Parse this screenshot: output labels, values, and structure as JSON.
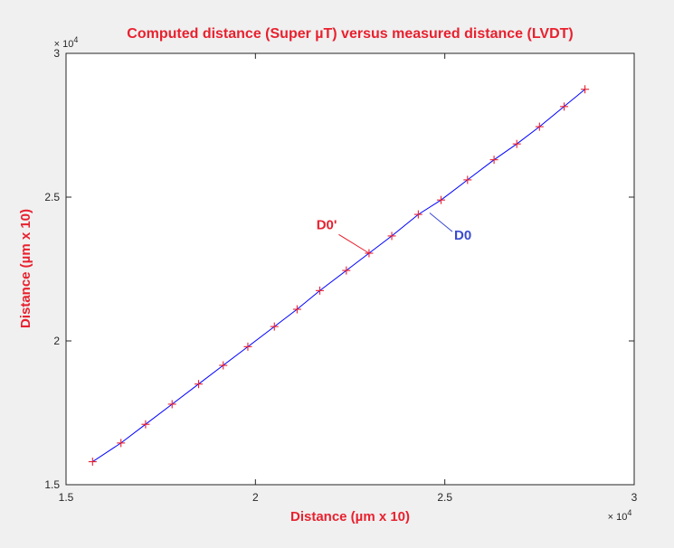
{
  "chart_data": {
    "type": "line",
    "title": "Computed distance (Super µT) versus measured distance (LVDT)",
    "xlabel": "Distance (µm x 10)",
    "ylabel": "Distance (µm x 10)",
    "xlim": [
      15000,
      30000
    ],
    "ylim": [
      15000,
      30000
    ],
    "x_ticks": [
      15000,
      20000,
      25000,
      30000
    ],
    "y_ticks": [
      15000,
      20000,
      25000,
      30000
    ],
    "x_tick_labels": [
      "1.5",
      "2",
      "2.5",
      "3"
    ],
    "y_tick_labels": [
      "1.5",
      "2",
      "2.5",
      "3"
    ],
    "x_exponent_label": "× 10",
    "x_exponent_power": "4",
    "y_exponent_label": "× 10",
    "y_exponent_power": "4",
    "grid": false,
    "series": [
      {
        "style": "line",
        "color": "#0000ff",
        "x": [
          15700,
          16450,
          17100,
          17800,
          18500,
          19150,
          19800,
          20500,
          21100,
          21700,
          22400,
          23000,
          23600,
          24300,
          24900,
          25600,
          26300,
          26900,
          27500,
          28150,
          28700
        ],
        "y": [
          15800,
          16450,
          17100,
          17800,
          18500,
          19150,
          19800,
          20500,
          21100,
          21750,
          22450,
          23050,
          23650,
          24400,
          24900,
          25600,
          26300,
          26850,
          27450,
          28150,
          28750
        ]
      },
      {
        "style": "marker",
        "marker": "+",
        "color": "#e8212f",
        "x": [
          15700,
          16450,
          17100,
          17800,
          18500,
          19150,
          19800,
          20500,
          21100,
          21700,
          22400,
          23000,
          23600,
          24300,
          24900,
          25600,
          26300,
          26900,
          27500,
          28150,
          28700
        ],
        "y": [
          15800,
          16450,
          17100,
          17800,
          18500,
          19150,
          19800,
          20500,
          21100,
          21750,
          22450,
          23050,
          23650,
          24400,
          24900,
          25600,
          26300,
          26850,
          27450,
          28150,
          28750
        ]
      }
    ],
    "annotations": [
      {
        "text": "D0'",
        "color": "#e8212f",
        "arrow_from": [
          22200,
          23700
        ],
        "arrow_to": [
          23000,
          23050
        ]
      },
      {
        "text": "D0",
        "color": "#3a4bd1",
        "arrow_from": [
          25200,
          23800
        ],
        "arrow_to": [
          24600,
          24450
        ]
      }
    ]
  }
}
